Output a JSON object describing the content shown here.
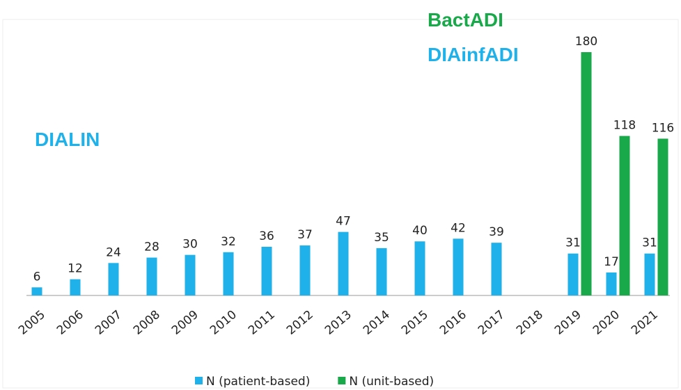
{
  "chart_data": {
    "type": "bar",
    "categories": [
      "2005",
      "2006",
      "2007",
      "2008",
      "2009",
      "2010",
      "2011",
      "2012",
      "2013",
      "2014",
      "2015",
      "2016",
      "2017",
      "2018",
      "2019",
      "2020",
      "2021"
    ],
    "series": [
      {
        "name": "N (patient-based)",
        "color": "#1eb1ea",
        "values": [
          6,
          12,
          24,
          28,
          30,
          32,
          36,
          37,
          47,
          35,
          40,
          42,
          39,
          null,
          31,
          17,
          31
        ]
      },
      {
        "name": "N (unit-based)",
        "color": "#19a94b",
        "values": [
          null,
          null,
          null,
          null,
          null,
          null,
          null,
          null,
          null,
          null,
          null,
          null,
          null,
          null,
          180,
          118,
          116
        ]
      }
    ],
    "annotations": [
      {
        "text": "BactADI",
        "color": "#19a94b"
      },
      {
        "text": "DIAinfADI",
        "color": "#1eb1ea"
      },
      {
        "text": "DIALIN",
        "color": "#1eb1ea"
      }
    ],
    "legend": "bottom"
  }
}
